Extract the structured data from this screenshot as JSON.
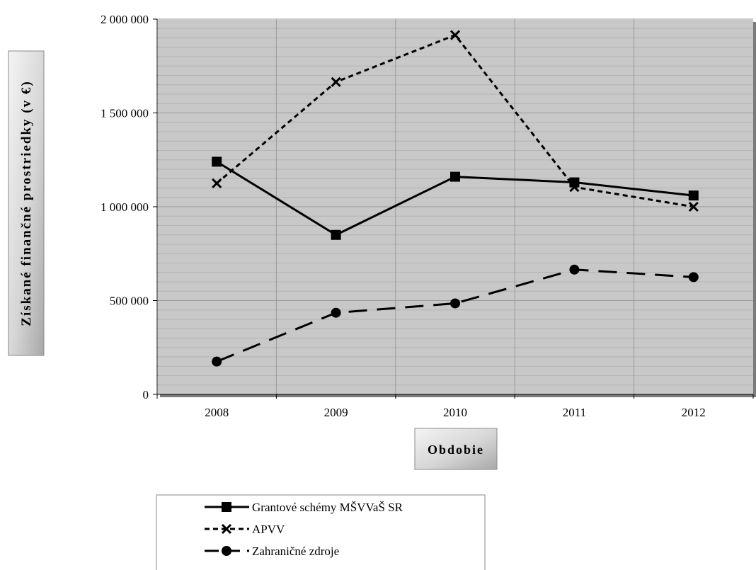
{
  "chart_data": {
    "type": "line",
    "title": "",
    "xlabel": "Obdobie",
    "ylabel": "Získané finančné prostriedky (v €)",
    "categories": [
      "2008",
      "2009",
      "2010",
      "2011",
      "2012"
    ],
    "ylim": [
      0,
      2000000
    ],
    "y_ticks": [
      0,
      500000,
      1000000,
      1500000,
      2000000
    ],
    "y_tick_labels": [
      "0",
      "500 000",
      "1 000 000",
      "1 500 000",
      "2 000 000"
    ],
    "grid": true,
    "legend_position": "bottom",
    "series": [
      {
        "name": "Grantové schémy MŠVVaŠ SR",
        "values": [
          1240000,
          850000,
          1160000,
          1130000,
          1060000
        ],
        "marker": "square",
        "dash": "solid"
      },
      {
        "name": "APVV",
        "values": [
          1125000,
          1665000,
          1915000,
          1105000,
          1000000
        ],
        "marker": "x",
        "dash": "dotted"
      },
      {
        "name": "Zahraničné zdroje",
        "values": [
          175000,
          435000,
          485000,
          665000,
          625000
        ],
        "marker": "circle",
        "dash": "long-dash"
      }
    ],
    "colors": {
      "plot_background": "#c8c8c8",
      "line": "#000000",
      "grid_major": "#9a9a9a",
      "grid_minor": "#b4b4b4"
    }
  }
}
